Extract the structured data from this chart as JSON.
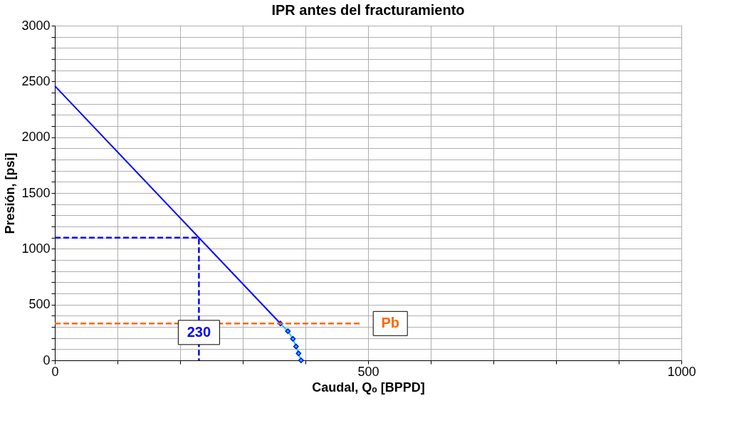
{
  "chart_data": {
    "type": "line",
    "title": "IPR antes del fracturamiento",
    "xlabel": "Caudal, Qₒ [BPPD]",
    "ylabel": "Presión, [psi]",
    "xlim": [
      0,
      1000
    ],
    "ylim": [
      0,
      3000
    ],
    "xticks": [
      0,
      {
        "value": 100,
        "label": null
      },
      {
        "value": 200,
        "label": null
      },
      {
        "value": 300,
        "label": null
      },
      {
        "value": 400,
        "label": null
      },
      500,
      {
        "value": 600,
        "label": null
      },
      {
        "value": 700,
        "label": null
      },
      {
        "value": 800,
        "label": null
      },
      {
        "value": 900,
        "label": null
      },
      1000
    ],
    "yticks": [
      0,
      {
        "value": 100,
        "label": null
      },
      {
        "value": 200,
        "label": null
      },
      {
        "value": 300,
        "label": null
      },
      {
        "value": 400,
        "label": null
      },
      500,
      {
        "value": 600,
        "label": null
      },
      {
        "value": 700,
        "label": null
      },
      {
        "value": 800,
        "label": null
      },
      {
        "value": 900,
        "label": null
      },
      1000,
      {
        "value": 1100,
        "label": null
      },
      {
        "value": 1200,
        "label": null
      },
      {
        "value": 1300,
        "label": null
      },
      {
        "value": 1400,
        "label": null
      },
      1500,
      {
        "value": 1600,
        "label": null
      },
      {
        "value": 1700,
        "label": null
      },
      {
        "value": 1800,
        "label": null
      },
      {
        "value": 1900,
        "label": null
      },
      2000,
      {
        "value": 2100,
        "label": null
      },
      {
        "value": 2200,
        "label": null
      },
      {
        "value": 2300,
        "label": null
      },
      {
        "value": 2400,
        "label": null
      },
      2500,
      {
        "value": 2600,
        "label": null
      },
      {
        "value": 2700,
        "label": null
      },
      {
        "value": 2800,
        "label": null
      },
      {
        "value": 2900,
        "label": null
      },
      3000
    ],
    "grid": true,
    "legend": false,
    "series": [
      {
        "color": "#0000ff",
        "x": [
          0,
          360
        ],
        "values": [
          2460,
          330
        ],
        "line_style": "solid"
      },
      {
        "color": "#00ccff",
        "x": [
          360,
          372,
          380,
          385,
          389,
          393
        ],
        "values": [
          330,
          262,
          193,
          125,
          62,
          0
        ],
        "marker": "diamond",
        "line_style": "solid"
      },
      {
        "color": "#0000ff",
        "x": [
          0,
          230,
          230
        ],
        "values": [
          1100,
          1100,
          0
        ],
        "line_style": "dashed"
      },
      {
        "name": "Pb",
        "color": "#ff6600",
        "x": [
          0,
          490
        ],
        "values": [
          330,
          330
        ],
        "line_style": "dashed"
      }
    ],
    "annotations": [
      {
        "text": "230",
        "x": 230,
        "y": 250
      }
    ]
  }
}
